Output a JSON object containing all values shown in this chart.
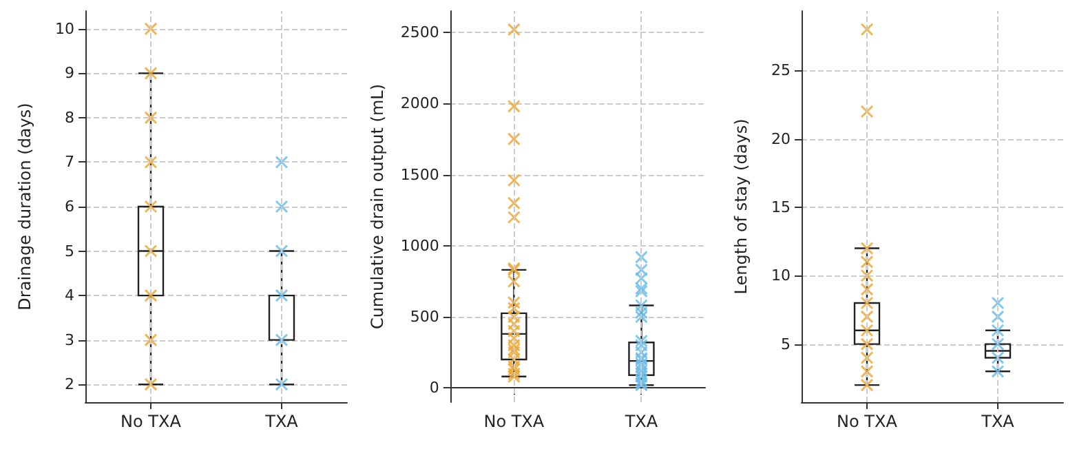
{
  "chart_data": [
    {
      "type": "box",
      "ylabel": "Drainage duration (days)",
      "categories": [
        "No TXA",
        "TXA"
      ],
      "ylim": [
        1.6,
        10.4
      ],
      "yticks": [
        2,
        3,
        4,
        5,
        6,
        7,
        8,
        9,
        10
      ],
      "grid": true,
      "marker": "cross",
      "boxes": [
        {
          "low": 2,
          "q1": 4,
          "median": 5,
          "q3": 6,
          "high": 9
        },
        {
          "low": 2,
          "q1": 3,
          "median": 4,
          "q3": 4,
          "high": 5
        }
      ],
      "series": [
        {
          "type": "scatter",
          "color": "#eba93a",
          "x": [
            "No TXA",
            "No TXA",
            "No TXA",
            "No TXA",
            "No TXA",
            "No TXA",
            "No TXA",
            "No TXA",
            "No TXA"
          ],
          "values": [
            10,
            9,
            8,
            7,
            6,
            5,
            4,
            3,
            2
          ]
        },
        {
          "type": "scatter",
          "color": "#6cbde9",
          "x": [
            "TXA",
            "TXA",
            "TXA",
            "TXA",
            "TXA",
            "TXA"
          ],
          "values": [
            7,
            6,
            5,
            4,
            3,
            2
          ]
        }
      ]
    },
    {
      "type": "box",
      "ylabel": "Cumulative drain output (mL)",
      "categories": [
        "No TXA",
        "TXA"
      ],
      "ylim": [
        -100,
        2650
      ],
      "yticks": [
        0,
        500,
        1000,
        1500,
        2000,
        2500
      ],
      "grid": true,
      "marker": "cross",
      "boxes": [
        {
          "low": 80,
          "q1": 200,
          "median": 380,
          "q3": 525,
          "high": 830
        },
        {
          "low": 20,
          "q1": 90,
          "median": 190,
          "q3": 320,
          "high": 580
        }
      ],
      "series": [
        {
          "type": "scatter",
          "color": "#eba93a",
          "x": [
            "No TXA",
            "No TXA",
            "No TXA",
            "No TXA",
            "No TXA",
            "No TXA",
            "No TXA",
            "No TXA",
            "No TXA",
            "No TXA",
            "No TXA",
            "No TXA",
            "No TXA",
            "No TXA",
            "No TXA",
            "No TXA",
            "No TXA",
            "No TXA",
            "No TXA",
            "No TXA",
            "No TXA",
            "No TXA",
            "No TXA"
          ],
          "values": [
            2520,
            1980,
            1750,
            1460,
            1300,
            1200,
            840,
            830,
            750,
            600,
            560,
            500,
            450,
            400,
            350,
            300,
            270,
            250,
            200,
            150,
            130,
            100,
            80
          ]
        },
        {
          "type": "scatter",
          "color": "#6cbde9",
          "x": [
            "TXA",
            "TXA",
            "TXA",
            "TXA",
            "TXA",
            "TXA",
            "TXA",
            "TXA",
            "TXA",
            "TXA",
            "TXA",
            "TXA",
            "TXA",
            "TXA",
            "TXA",
            "TXA",
            "TXA",
            "TXA",
            "TXA",
            "TXA",
            "TXA"
          ],
          "values": [
            920,
            830,
            770,
            700,
            680,
            580,
            530,
            500,
            330,
            300,
            250,
            210,
            200,
            170,
            150,
            120,
            100,
            80,
            50,
            30,
            20
          ]
        }
      ]
    },
    {
      "type": "box",
      "ylabel": "Length of stay (days)",
      "categories": [
        "No TXA",
        "TXA"
      ],
      "ylim": [
        0.75,
        29.35
      ],
      "yticks": [
        5,
        10,
        15,
        20,
        25
      ],
      "grid": true,
      "marker": "cross",
      "boxes": [
        {
          "low": 2,
          "q1": 5,
          "median": 6,
          "q3": 8,
          "high": 12
        },
        {
          "low": 3,
          "q1": 4,
          "median": 4.5,
          "q3": 5,
          "high": 6
        }
      ],
      "series": [
        {
          "type": "scatter",
          "color": "#eba93a",
          "x": [
            "No TXA",
            "No TXA",
            "No TXA",
            "No TXA",
            "No TXA",
            "No TXA",
            "No TXA",
            "No TXA",
            "No TXA",
            "No TXA",
            "No TXA",
            "No TXA",
            "No TXA"
          ],
          "values": [
            28,
            22,
            12,
            11,
            10,
            9,
            8,
            7,
            6,
            5,
            4,
            3,
            2
          ]
        },
        {
          "type": "scatter",
          "color": "#6cbde9",
          "x": [
            "TXA",
            "TXA",
            "TXA",
            "TXA",
            "TXA",
            "TXA"
          ],
          "values": [
            8,
            7,
            6,
            5,
            4,
            3
          ]
        }
      ]
    }
  ]
}
